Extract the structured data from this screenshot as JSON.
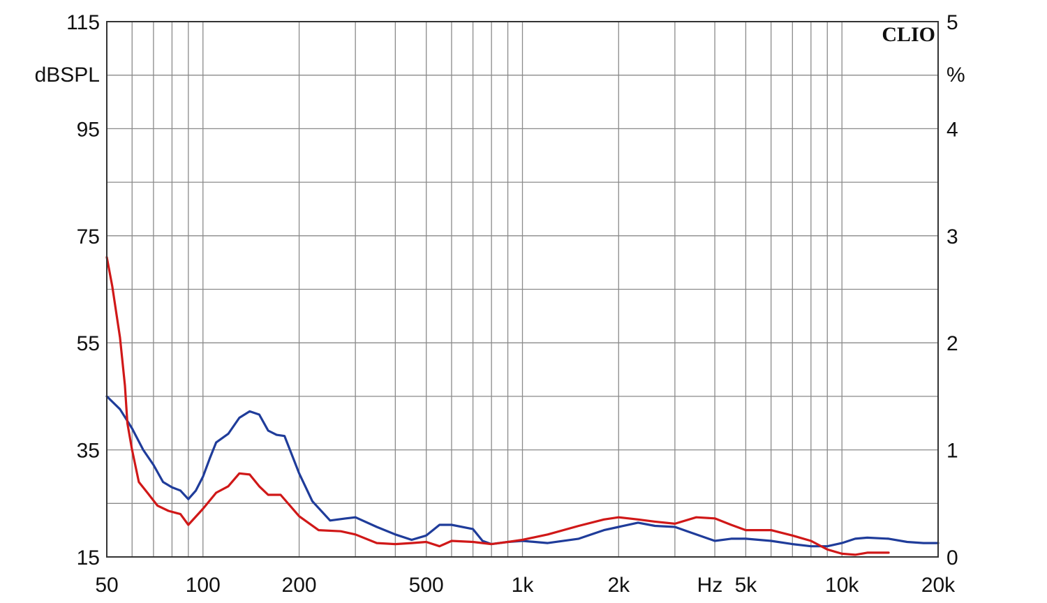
{
  "chart_data": {
    "type": "line",
    "brand": "CLIO",
    "x_scale": "log",
    "xlim": [
      50,
      20000
    ],
    "x_unit": "Hz",
    "x_ticks": [
      {
        "value": 50,
        "label": "50"
      },
      {
        "value": 100,
        "label": "100"
      },
      {
        "value": 200,
        "label": "200"
      },
      {
        "value": 500,
        "label": "500"
      },
      {
        "value": 1000,
        "label": "1k"
      },
      {
        "value": 2000,
        "label": "2k"
      },
      {
        "value": 5000,
        "label": "5k"
      },
      {
        "value": 10000,
        "label": "10k"
      },
      {
        "value": 20000,
        "label": "20k"
      }
    ],
    "y_left": {
      "label": "dBSPL",
      "ylim": [
        15,
        115
      ],
      "ticks": [
        {
          "value": 115,
          "label": "115"
        },
        {
          "value": 95,
          "label": "95"
        },
        {
          "value": 75,
          "label": "75"
        },
        {
          "value": 55,
          "label": "55"
        },
        {
          "value": 35,
          "label": "35"
        },
        {
          "value": 15,
          "label": "15"
        }
      ]
    },
    "y_right": {
      "label": "%",
      "ylim": [
        0,
        5
      ],
      "ticks": [
        {
          "value": 5,
          "label": "5"
        },
        {
          "value": 4,
          "label": "4"
        },
        {
          "value": 3,
          "label": "3"
        },
        {
          "value": 2,
          "label": "2"
        },
        {
          "value": 1,
          "label": "1"
        },
        {
          "value": 0,
          "label": "0"
        }
      ]
    },
    "grid": true,
    "series": [
      {
        "color": "#1f3c9a",
        "axis": "right",
        "points": [
          [
            50,
            1.5
          ],
          [
            55,
            1.38
          ],
          [
            60,
            1.2
          ],
          [
            65,
            1.0
          ],
          [
            70,
            0.86
          ],
          [
            75,
            0.7
          ],
          [
            80,
            0.65
          ],
          [
            85,
            0.62
          ],
          [
            90,
            0.54
          ],
          [
            95,
            0.62
          ],
          [
            100,
            0.75
          ],
          [
            105,
            0.92
          ],
          [
            110,
            1.07
          ],
          [
            120,
            1.15
          ],
          [
            130,
            1.3
          ],
          [
            140,
            1.36
          ],
          [
            150,
            1.33
          ],
          [
            160,
            1.18
          ],
          [
            170,
            1.14
          ],
          [
            180,
            1.13
          ],
          [
            200,
            0.78
          ],
          [
            220,
            0.52
          ],
          [
            250,
            0.34
          ],
          [
            280,
            0.36
          ],
          [
            300,
            0.37
          ],
          [
            350,
            0.28
          ],
          [
            400,
            0.21
          ],
          [
            450,
            0.16
          ],
          [
            500,
            0.2
          ],
          [
            550,
            0.3
          ],
          [
            600,
            0.3
          ],
          [
            700,
            0.26
          ],
          [
            750,
            0.15
          ],
          [
            800,
            0.12
          ],
          [
            900,
            0.14
          ],
          [
            1000,
            0.15
          ],
          [
            1200,
            0.13
          ],
          [
            1500,
            0.17
          ],
          [
            1800,
            0.25
          ],
          [
            2000,
            0.28
          ],
          [
            2300,
            0.32
          ],
          [
            2600,
            0.29
          ],
          [
            3000,
            0.28
          ],
          [
            3500,
            0.21
          ],
          [
            4000,
            0.15
          ],
          [
            4500,
            0.17
          ],
          [
            5000,
            0.17
          ],
          [
            6000,
            0.15
          ],
          [
            7000,
            0.12
          ],
          [
            8000,
            0.1
          ],
          [
            9000,
            0.1
          ],
          [
            10000,
            0.13
          ],
          [
            11000,
            0.17
          ],
          [
            12000,
            0.18
          ],
          [
            14000,
            0.17
          ],
          [
            16000,
            0.14
          ],
          [
            18000,
            0.13
          ],
          [
            20000,
            0.13
          ]
        ]
      },
      {
        "color": "#d01818",
        "axis": "right",
        "points": [
          [
            50,
            2.8
          ],
          [
            52,
            2.53
          ],
          [
            55,
            2.05
          ],
          [
            57,
            1.6
          ],
          [
            58,
            1.25
          ],
          [
            60,
            1.0
          ],
          [
            63,
            0.7
          ],
          [
            67,
            0.6
          ],
          [
            72,
            0.48
          ],
          [
            78,
            0.43
          ],
          [
            85,
            0.4
          ],
          [
            90,
            0.3
          ],
          [
            100,
            0.45
          ],
          [
            110,
            0.6
          ],
          [
            120,
            0.66
          ],
          [
            130,
            0.78
          ],
          [
            140,
            0.77
          ],
          [
            150,
            0.66
          ],
          [
            160,
            0.58
          ],
          [
            175,
            0.58
          ],
          [
            200,
            0.38
          ],
          [
            230,
            0.25
          ],
          [
            270,
            0.24
          ],
          [
            300,
            0.21
          ],
          [
            350,
            0.13
          ],
          [
            400,
            0.12
          ],
          [
            450,
            0.13
          ],
          [
            500,
            0.14
          ],
          [
            550,
            0.1
          ],
          [
            600,
            0.15
          ],
          [
            700,
            0.14
          ],
          [
            800,
            0.12
          ],
          [
            900,
            0.14
          ],
          [
            1000,
            0.16
          ],
          [
            1200,
            0.21
          ],
          [
            1500,
            0.29
          ],
          [
            1800,
            0.35
          ],
          [
            2000,
            0.37
          ],
          [
            2300,
            0.35
          ],
          [
            2600,
            0.33
          ],
          [
            3000,
            0.31
          ],
          [
            3500,
            0.37
          ],
          [
            4000,
            0.36
          ],
          [
            4500,
            0.3
          ],
          [
            5000,
            0.25
          ],
          [
            6000,
            0.25
          ],
          [
            7000,
            0.2
          ],
          [
            8000,
            0.15
          ],
          [
            9000,
            0.07
          ],
          [
            10000,
            0.03
          ],
          [
            11000,
            0.02
          ],
          [
            12000,
            0.04
          ],
          [
            14000,
            0.04
          ]
        ]
      }
    ]
  }
}
